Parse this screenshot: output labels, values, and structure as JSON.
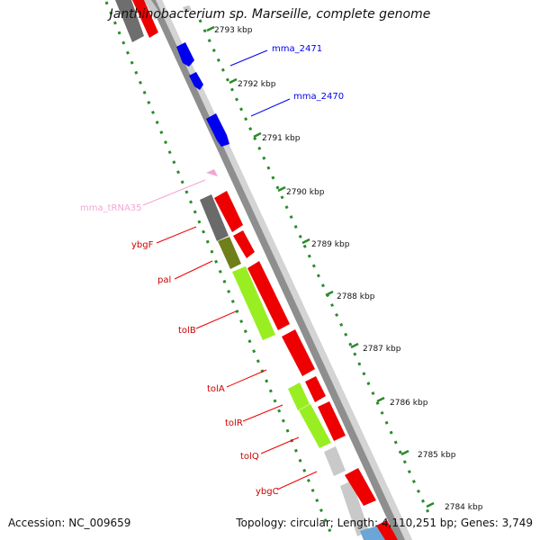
{
  "title": "Janthinobacterium sp. Marseille, complete genome",
  "footer": {
    "accession": "Accession: NC_009659",
    "topology": "Topology: circular; Length: 4,110,251 bp; Genes: 3,749"
  },
  "scale": {
    "ticks": [
      "2793 kbp",
      "2792 kbp",
      "2791 kbp",
      "2790 kbp",
      "2789 kbp",
      "2788 kbp",
      "2787 kbp",
      "2786 kbp",
      "2785 kbp",
      "2784 kbp"
    ]
  },
  "genes": {
    "mma_2471": "mma_2471",
    "mma_2470": "mma_2470",
    "mma_tRNA35": "mma_tRNA35",
    "ybgF": "ybgF",
    "pal": "pal",
    "tolB": "tolB",
    "tolA": "tolA",
    "tolR": "tolR",
    "tolQ": "tolQ",
    "ybgC": "ybgC"
  },
  "colors": {
    "forward_gene": "#ee0000",
    "hypothetical_gene": "#0000ee",
    "trna": "#f3a6d2",
    "ring": "#2a8a2a",
    "backbone": "#8e8e8e"
  }
}
